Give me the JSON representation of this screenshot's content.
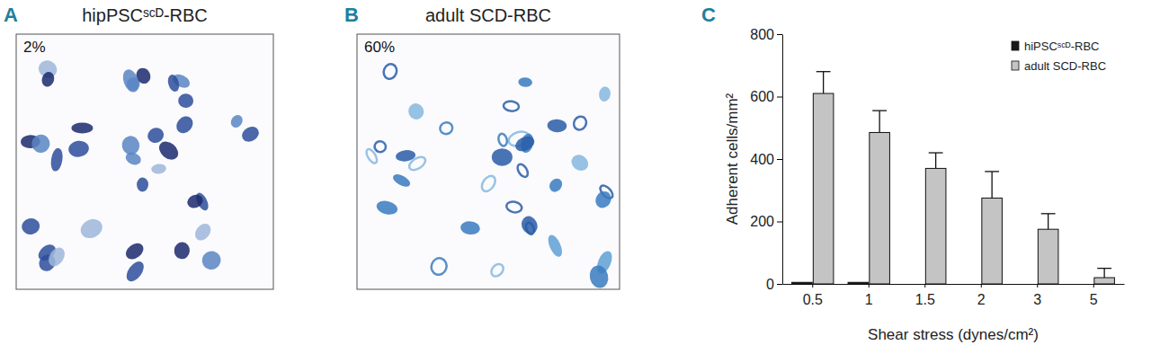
{
  "panels": [
    {
      "label": "A",
      "title": "hipPSCˢᶜᴰ-RBC",
      "annotation": "2%"
    },
    {
      "label": "B",
      "title": "adult SCD-RBC",
      "annotation": "60%"
    }
  ],
  "chart_data": {
    "type": "bar",
    "panel_label": "C",
    "x_label": "Shear stress (dynes/cm²)",
    "y_label": "Adherent cells/mm²",
    "categories": [
      "0.5",
      "1",
      "1.5",
      "2",
      "3",
      "5"
    ],
    "series": [
      {
        "name": "hiPSCˢᶜᴰ-RBC",
        "color": "#1a1a1a",
        "values": [
          5,
          5,
          0,
          0,
          0,
          0
        ]
      },
      {
        "name": "adult SCD-RBC",
        "color": "#c4c4c4",
        "values": [
          610,
          485,
          370,
          275,
          175,
          20
        ],
        "errors": [
          70,
          70,
          50,
          85,
          50,
          30
        ]
      }
    ],
    "ylim": [
      0,
      800
    ],
    "yticks": [
      0,
      200,
      400,
      600,
      800
    ],
    "grid": false,
    "legend": "top-right"
  }
}
